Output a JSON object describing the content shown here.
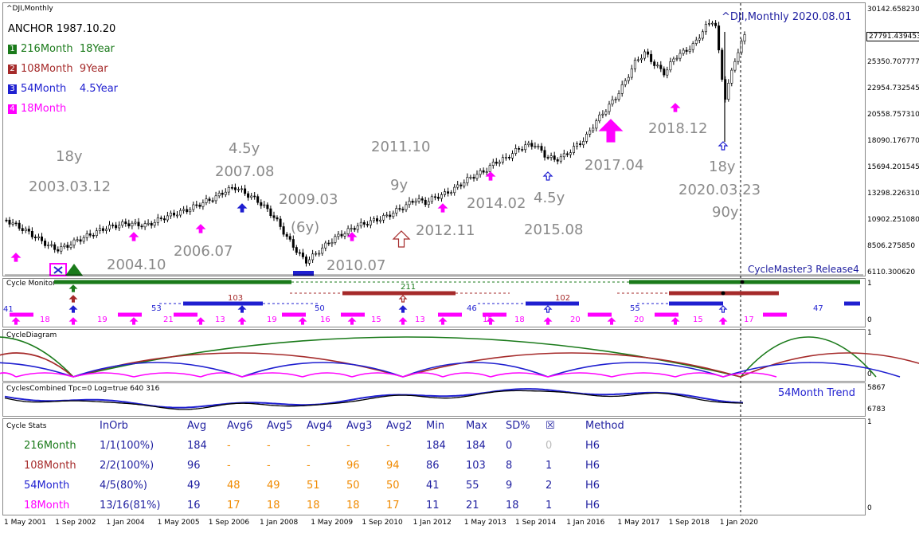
{
  "main": {
    "symbol": "^DJI,Monthly",
    "title_right": "^DJI,Monthly 2020.08.01",
    "anchor": "ANCHOR 1987.10.20",
    "legend": [
      {
        "num": "1",
        "label": "216Month",
        "years": "18Year",
        "color": "#1a7a1a",
        "box": "#1a7a1a"
      },
      {
        "num": "2",
        "label": "108Month",
        "years": "9Year",
        "color": "#a52a2a",
        "box": "#a52a2a"
      },
      {
        "num": "3",
        "label": "54Month",
        "years": "4.5Year",
        "color": "#1f1fd0",
        "box": "#1f1fd0"
      },
      {
        "num": "4",
        "label": "18Month",
        "years": "",
        "color": "#ff00ff",
        "box": "#ff00ff"
      }
    ],
    "annotations": [
      "18y",
      "2003.03.12",
      "2004.10",
      "4.5y",
      "2007.08",
      "2006.07",
      "2009.03",
      "(6y)",
      "2010.07",
      "2011.10",
      "9y",
      "2012.11",
      "2014.02",
      "4.5y",
      "2015.08",
      "2017.04",
      "2018.12",
      "18y",
      "2020.03.23",
      "90y"
    ],
    "footer": "CycleMaster3 Release4",
    "price_scale": [
      "30142.658230",
      "27791.439453",
      "25350.707777",
      "22954.732545",
      "20558.757310",
      "18090.176770",
      "15694.201545",
      "13298.226310",
      "10902.251080",
      "8506.275850",
      "6110.300620"
    ],
    "current_price": "27791.439453"
  },
  "monitor": {
    "title": "Cycle Monitor",
    "scale": [
      "1",
      "0"
    ],
    "numbers_108": [
      "103",
      "211",
      "102"
    ],
    "numbers_54": [
      "41",
      "53",
      "50",
      "46",
      "55",
      "47"
    ],
    "numbers_18": [
      "18",
      "19",
      "21",
      "13",
      "19",
      "16",
      "15",
      "13",
      "15",
      "18",
      "20",
      "20",
      "15",
      "17"
    ]
  },
  "diagram": {
    "title": "CycleDiagram",
    "scale": [
      "1",
      "0"
    ]
  },
  "combined": {
    "title": "CyclesCombined Tpc=0 Log=true 640 316",
    "trend_label": "54Month Trend",
    "scale": [
      "5867",
      "6783"
    ]
  },
  "stats": {
    "title": "Cycle Stats",
    "headers": [
      "InOrb",
      "Avg",
      "Avg6",
      "Avg5",
      "Avg4",
      "Avg3",
      "Avg2",
      "Min",
      "Max",
      "SD%",
      "☒",
      "Method"
    ],
    "rows": [
      {
        "name": "216Month",
        "color": "#1a7a1a",
        "cells": [
          "1/1(100%)",
          "184",
          "-",
          "-",
          "-",
          "-",
          "-",
          "184",
          "184",
          "0",
          "0",
          "H6"
        ]
      },
      {
        "name": "108Month",
        "color": "#a52a2a",
        "cells": [
          "2/2(100%)",
          "96",
          "-",
          "-",
          "-",
          "96",
          "94",
          "86",
          "103",
          "8",
          "1",
          "H6"
        ]
      },
      {
        "name": "54Month",
        "color": "#1f1fd0",
        "cells": [
          "4/5(80%)",
          "49",
          "48",
          "49",
          "51",
          "50",
          "50",
          "41",
          "55",
          "9",
          "2",
          "H6"
        ]
      },
      {
        "name": "18Month",
        "color": "#ff00ff",
        "cells": [
          "13/16(81%)",
          "16",
          "17",
          "18",
          "18",
          "18",
          "17",
          "11",
          "21",
          "18",
          "1",
          "H6"
        ]
      }
    ],
    "scale": [
      "1",
      "0"
    ]
  },
  "xaxis": [
    "1 May 2001",
    "1 Sep 2002",
    "1 Jan 2004",
    "1 May 2005",
    "1 Sep 2006",
    "1 Jan 2008",
    "1 May 2009",
    "1 Sep 2010",
    "1 Jan 2012",
    "1 May 2013",
    "1 Sep 2014",
    "1 Jan 2016",
    "1 May 2017",
    "1 Sep 2018",
    "1 Jan 2020"
  ],
  "chart_data": {
    "type": "line",
    "series": [
      {
        "values": [
          10900,
          10400,
          9900,
          9300,
          8700,
          8200,
          8500,
          9000,
          9400,
          9800,
          10200,
          10400,
          10600,
          10500,
          10400,
          10800,
          11200,
          11500,
          11800,
          12200,
          12600,
          13000,
          13600,
          13900,
          13300,
          12800,
          12000,
          11000,
          9500,
          8200,
          7100,
          7800,
          8600,
          9300,
          9800,
          10300,
          10600,
          10900,
          11200,
          11700,
          12200,
          12800,
          12500,
          13000,
          13300,
          13800,
          14500,
          15000,
          15400,
          16200,
          16500,
          17200,
          17700,
          17800,
          16800,
          16400,
          16800,
          17600,
          18300,
          19800,
          20900,
          22000,
          23500,
          25300,
          26200,
          25100,
          24300,
          25800,
          26300,
          27000,
          28500,
          29300,
          21900,
          25500,
          27800
        ]
      }
    ]
  }
}
